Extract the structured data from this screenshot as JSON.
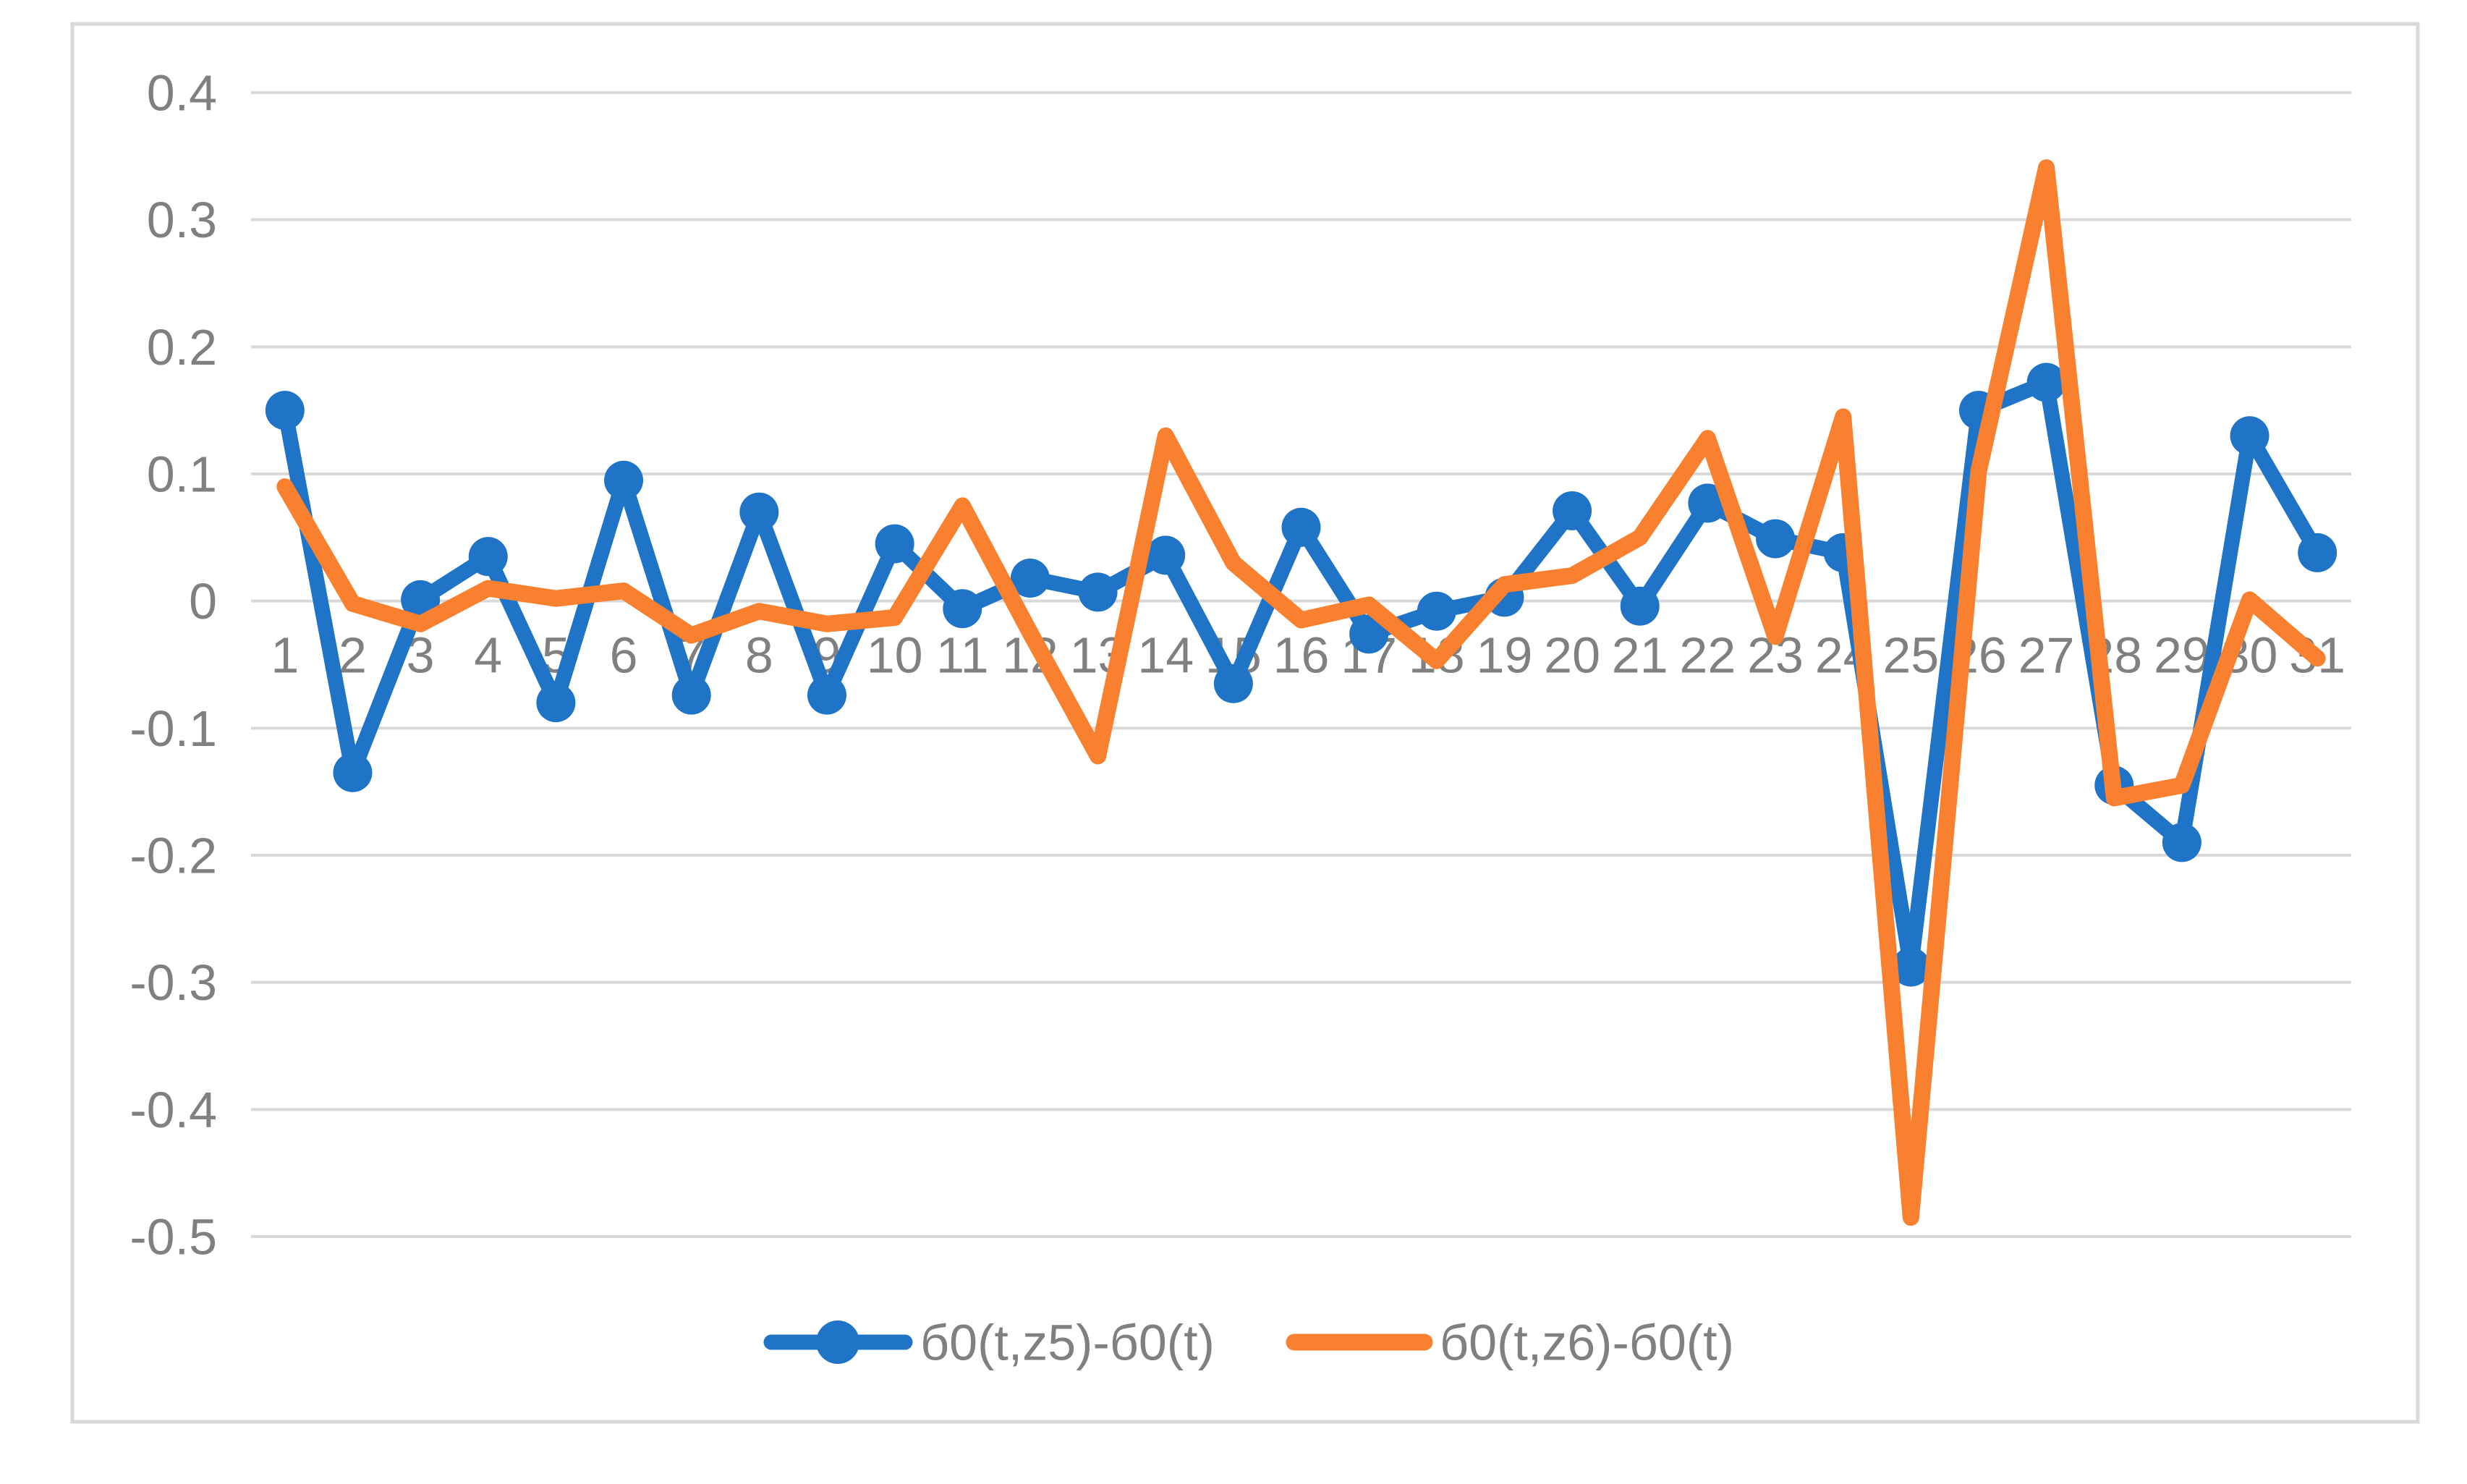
{
  "chart_data": {
    "type": "line",
    "categories": [
      1,
      2,
      3,
      4,
      5,
      6,
      7,
      8,
      9,
      10,
      11,
      12,
      13,
      14,
      15,
      16,
      17,
      18,
      19,
      20,
      21,
      22,
      23,
      24,
      25,
      26,
      27,
      28,
      29,
      30,
      31
    ],
    "series": [
      {
        "name": "б0(t,z5)-б0(t)",
        "color": "#1F74C8",
        "marker": "circle",
        "values": [
          0.15,
          -0.135,
          0.001,
          0.035,
          -0.08,
          0.095,
          -0.074,
          0.07,
          -0.074,
          0.045,
          -0.006,
          0.018,
          0.007,
          0.036,
          -0.065,
          0.058,
          -0.026,
          -0.008,
          0.003,
          0.071,
          -0.004,
          0.077,
          0.049,
          0.038,
          -0.288,
          0.15,
          0.172,
          -0.145,
          -0.19,
          0.13,
          0.038
        ]
      },
      {
        "name": "б0(t,z6)-б0(t)",
        "color": "#F8802E",
        "marker": "none",
        "values": [
          0.09,
          -0.002,
          -0.018,
          0.01,
          0.002,
          0.008,
          -0.027,
          -0.008,
          -0.018,
          -0.013,
          0.075,
          -0.025,
          -0.122,
          0.13,
          0.03,
          -0.015,
          -0.003,
          -0.047,
          0.013,
          0.02,
          0.05,
          0.128,
          -0.028,
          0.145,
          -0.485,
          0.102,
          0.341,
          -0.155,
          -0.145,
          0.001,
          -0.045
        ]
      }
    ],
    "ylim": [
      -0.5,
      0.4
    ],
    "ytick_labels": [
      "0.4",
      "0.3",
      "0.2",
      "0.1",
      "0",
      "-0.1",
      "-0.2",
      "-0.3",
      "-0.4",
      "-0.5"
    ],
    "xlabel": "",
    "ylabel": "",
    "title": "",
    "grid": true,
    "legend_position": "bottom-center",
    "colors": {
      "grid": "#D9D9D9",
      "border": "#D9D9D9",
      "tick_text": "#808080",
      "background": "#FFFFFF"
    }
  }
}
